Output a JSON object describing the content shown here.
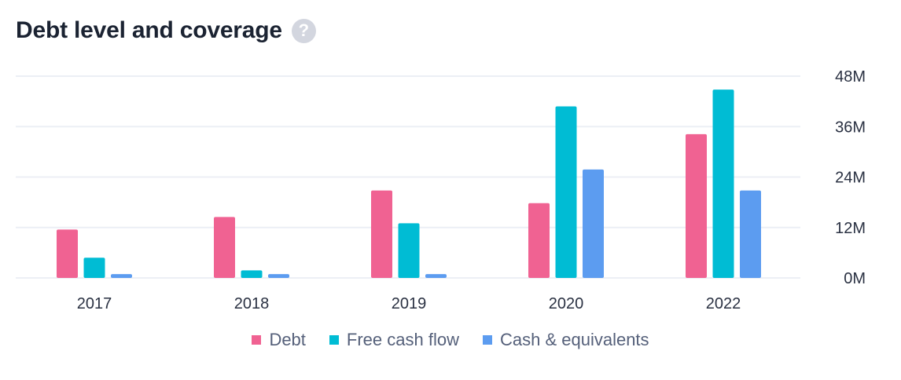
{
  "header": {
    "title": "Debt level and coverage",
    "help_glyph": "?"
  },
  "colors": {
    "debt": "#f06292",
    "fcf": "#00bcd4",
    "cash": "#5c9cf0",
    "grid": "#eceff5"
  },
  "chart_data": {
    "type": "bar",
    "categories": [
      "2017",
      "2018",
      "2019",
      "2020",
      "2022"
    ],
    "series": [
      {
        "name": "Debt",
        "color": "#f06292",
        "values": [
          11.5,
          14.5,
          20.8,
          17.8,
          34.2
        ]
      },
      {
        "name": "Free cash flow",
        "color": "#00bcd4",
        "values": [
          4.8,
          1.8,
          13.0,
          40.8,
          44.8
        ]
      },
      {
        "name": "Cash & equivalents",
        "color": "#5c9cf0",
        "values": [
          0.9,
          0.9,
          0.9,
          25.8,
          20.8
        ]
      }
    ],
    "y_ticks": [
      "0M",
      "12M",
      "24M",
      "36M",
      "48M"
    ],
    "y_tick_values": [
      0,
      12,
      24,
      36,
      48
    ],
    "ylim": [
      0,
      48
    ],
    "y_axis_side": "right",
    "grid": true,
    "legend_position": "bottom"
  }
}
